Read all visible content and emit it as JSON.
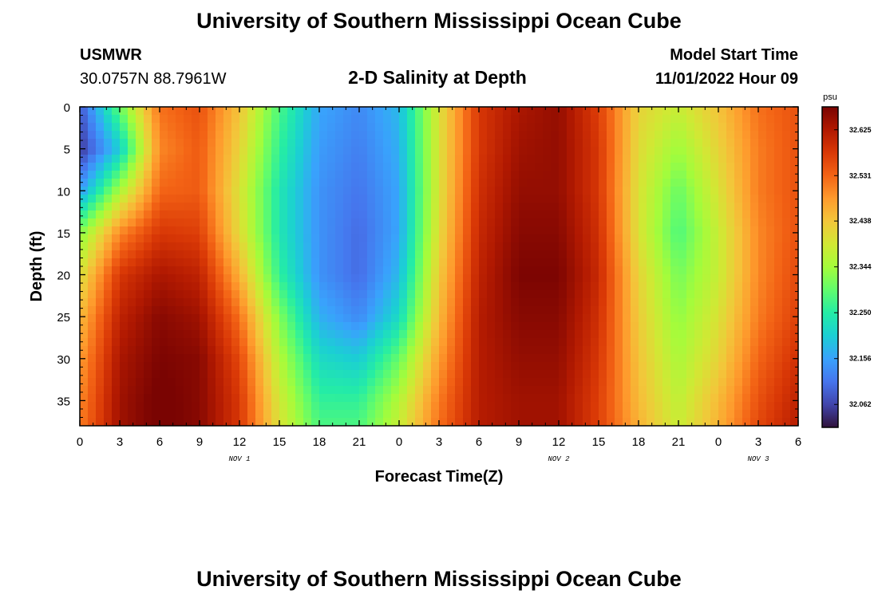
{
  "page": {
    "title": "University of Southern Mississippi Ocean Cube",
    "title_bottom": "University of Southern Mississippi Ocean Cube",
    "station": "USMWR",
    "coords": "30.0757N  88.7961W",
    "subtitle": "2-D Salinity at Depth",
    "model_start_label": "Model Start Time",
    "model_start_value": "11/01/2022 Hour 09"
  },
  "chart_data": {
    "type": "heatmap",
    "xlabel": "Forecast Time(Z)",
    "ylabel": "Depth (ft)",
    "colorbar_unit": "psu",
    "x_tick_labels": [
      "0",
      "3",
      "6",
      "9",
      "12",
      "15",
      "18",
      "21",
      "0",
      "3",
      "6",
      "9",
      "12",
      "15",
      "18",
      "21",
      "0",
      "3",
      "6"
    ],
    "x_range_hours": [
      0,
      54
    ],
    "day_labels": [
      {
        "label": "NOV 1",
        "hour": 12
      },
      {
        "label": "NOV 2",
        "hour": 36
      },
      {
        "label": "NOV 3",
        "hour": 51
      }
    ],
    "y_ticks": [
      0,
      5,
      10,
      15,
      20,
      25,
      30,
      35
    ],
    "ylim": [
      0,
      38
    ],
    "colorbar_ticks": [
      32.625,
      32.531,
      32.438,
      32.344,
      32.25,
      32.156,
      32.062
    ],
    "color_range": [
      32.015,
      32.672
    ],
    "colormap": [
      "#30123b",
      "#4145ab",
      "#4675ed",
      "#39a2fc",
      "#1bcfd4",
      "#24eca6",
      "#61fc6c",
      "#a4fc3b",
      "#d1e834",
      "#f3c63a",
      "#fe9b2d",
      "#f36315",
      "#d93806",
      "#b11901",
      "#7a0402"
    ],
    "depths": [
      0,
      5,
      10,
      15,
      20,
      25,
      30,
      35,
      38
    ],
    "times": [
      0,
      3,
      6,
      9,
      12,
      15,
      18,
      21,
      24,
      27,
      30,
      33,
      36,
      39,
      42,
      45,
      48,
      51,
      54
    ],
    "salinity": [
      [
        32.08,
        32.3,
        32.52,
        32.55,
        32.44,
        32.28,
        32.16,
        32.13,
        32.18,
        32.4,
        32.58,
        32.63,
        32.65,
        32.57,
        32.42,
        32.38,
        32.44,
        32.52,
        32.55
      ],
      [
        32.05,
        32.2,
        32.5,
        32.54,
        32.42,
        32.26,
        32.15,
        32.12,
        32.17,
        32.4,
        32.58,
        32.64,
        32.65,
        32.58,
        32.41,
        32.34,
        32.42,
        32.51,
        32.55
      ],
      [
        32.15,
        32.35,
        32.53,
        32.54,
        32.4,
        32.24,
        32.14,
        32.11,
        32.16,
        32.4,
        32.59,
        32.65,
        32.65,
        32.58,
        32.4,
        32.3,
        32.4,
        32.51,
        32.55
      ],
      [
        32.32,
        32.5,
        32.58,
        32.57,
        32.41,
        32.24,
        32.14,
        32.1,
        32.16,
        32.41,
        32.6,
        32.66,
        32.66,
        32.59,
        32.4,
        32.28,
        32.38,
        32.5,
        32.55
      ],
      [
        32.4,
        32.58,
        32.63,
        32.61,
        32.46,
        32.26,
        32.14,
        32.1,
        32.18,
        32.43,
        32.61,
        32.67,
        32.67,
        32.6,
        32.42,
        32.31,
        32.38,
        32.5,
        32.56
      ],
      [
        32.45,
        32.61,
        32.66,
        32.64,
        32.52,
        32.32,
        32.17,
        32.13,
        32.22,
        32.45,
        32.62,
        32.66,
        32.66,
        32.59,
        32.43,
        32.33,
        32.4,
        32.51,
        32.57
      ],
      [
        32.48,
        32.63,
        32.67,
        32.66,
        32.56,
        32.36,
        32.22,
        32.2,
        32.3,
        32.48,
        32.62,
        32.65,
        32.65,
        32.58,
        32.44,
        32.35,
        32.42,
        32.53,
        32.59
      ],
      [
        32.5,
        32.64,
        32.68,
        32.66,
        32.58,
        32.39,
        32.26,
        32.26,
        32.36,
        32.51,
        32.62,
        32.64,
        32.64,
        32.57,
        32.45,
        32.37,
        32.45,
        32.55,
        32.61
      ],
      [
        32.51,
        32.64,
        32.68,
        32.66,
        32.58,
        32.4,
        32.28,
        32.28,
        32.38,
        32.52,
        32.62,
        32.64,
        32.64,
        32.57,
        32.46,
        32.38,
        32.46,
        32.56,
        32.62
      ]
    ]
  }
}
